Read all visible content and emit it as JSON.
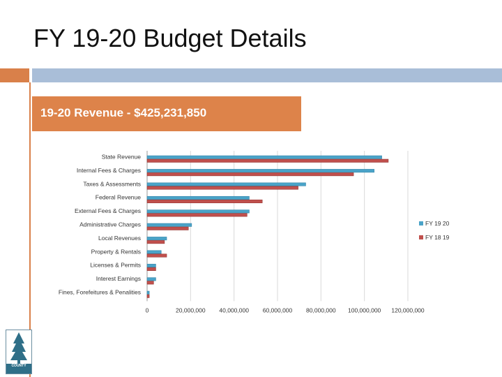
{
  "slide": {
    "title": "FY 19-20 Budget Details"
  },
  "banner": {
    "text": "19-20 Revenue - $425,231,850"
  },
  "logo": {
    "text": "COUNTY",
    "icon": "tree-icon"
  },
  "colors": {
    "series_fy1920": "#4aa3c8",
    "series_fy1819": "#c0504d",
    "banner": "#dd834a",
    "accent_blue": "#a9bed8"
  },
  "chart_data": {
    "type": "bar",
    "orientation": "horizontal",
    "categories": [
      "State Revenue",
      "Internal Fees & Charges",
      "Taxes & Assessments",
      "Federal Revenue",
      "External Fees & Charges",
      "Administrative Charges",
      "Local Revenues",
      "Property & Rentals",
      "Licenses & Permits",
      "Interest Earnings",
      "Fines, Forefeitures & Penalities"
    ],
    "series": [
      {
        "name": "FY 19 20",
        "color": "#4aa3c8",
        "values": [
          108000000,
          104500000,
          73000000,
          47000000,
          47000000,
          20500000,
          9000000,
          6500000,
          4000000,
          4000000,
          1000000
        ]
      },
      {
        "name": "FY 18 19",
        "color": "#c0504d",
        "values": [
          111000000,
          95000000,
          69500000,
          53000000,
          46000000,
          19000000,
          8000000,
          9000000,
          4000000,
          3000000,
          1000000
        ]
      }
    ],
    "xlim": [
      0,
      120000000
    ],
    "xticks": [
      0,
      20000000,
      40000000,
      60000000,
      80000000,
      100000000,
      120000000
    ],
    "xtick_labels": [
      "0",
      "20,000,000",
      "40,000,000",
      "60,000,000",
      "80,000,000",
      "100,000,000",
      "120,000,000"
    ],
    "legend_position": "right",
    "grid": true
  }
}
